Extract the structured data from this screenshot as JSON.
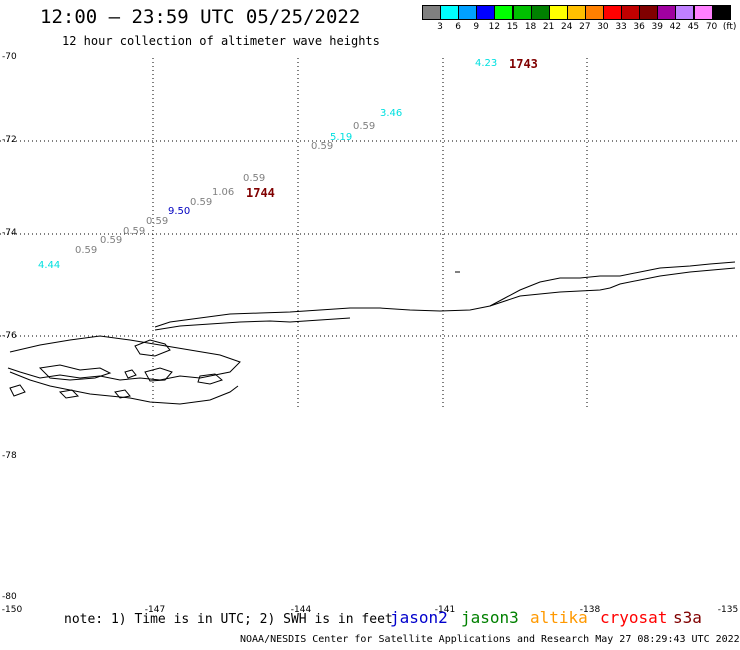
{
  "header": {
    "title": "12:00 – 23:59 UTC 05/25/2022",
    "subtitle": "12 hour collection of altimeter wave heights"
  },
  "legend": {
    "colors": [
      "#808080",
      "#00ffff",
      "#00a0ff",
      "#0000ff",
      "#00ff00",
      "#00c000",
      "#008000",
      "#ffff00",
      "#ffc000",
      "#ff8000",
      "#ff0000",
      "#c00000",
      "#800000",
      "#a000a0",
      "#c080ff",
      "#ff80ff",
      "#000000"
    ],
    "labels": [
      "3",
      "6",
      "9",
      "12",
      "15",
      "18",
      "21",
      "24",
      "27",
      "30",
      "33",
      "36",
      "39",
      "42",
      "45",
      "70",
      "(ft)"
    ]
  },
  "axes": {
    "lat_labels": [
      "-70",
      "-72",
      "-74",
      "-76",
      "-78",
      "-80"
    ],
    "lon_labels": [
      "-150",
      "-147",
      "-144",
      "-141",
      "-138",
      "-135"
    ]
  },
  "observations": [
    {
      "value": "4.23",
      "color": "#00e0e0"
    },
    {
      "value": "3.46",
      "color": "#00e0e0"
    },
    {
      "value": "0.59",
      "color": "#808080"
    },
    {
      "value": "5.19",
      "color": "#00e0e0"
    },
    {
      "value": "0.59",
      "color": "#808080"
    },
    {
      "value": "0.59",
      "color": "#808080"
    },
    {
      "value": "1.06",
      "color": "#808080"
    },
    {
      "value": "0.59",
      "color": "#808080"
    },
    {
      "value": "9.50",
      "color": "#0000c0"
    },
    {
      "value": "0.59",
      "color": "#808080"
    },
    {
      "value": "0.59",
      "color": "#808080"
    },
    {
      "value": "0.59",
      "color": "#808080"
    },
    {
      "value": "0.59",
      "color": "#808080"
    },
    {
      "value": "4.44",
      "color": "#00e0e0"
    }
  ],
  "pass_times": [
    {
      "label": "1743",
      "color": "#800000"
    },
    {
      "label": "1744",
      "color": "#800000"
    }
  ],
  "footer": {
    "note": "note: 1) Time is in UTC; 2) SWH is in feet",
    "satellites": [
      {
        "name": "jason2",
        "color": "#0000cc"
      },
      {
        "name": "jason3",
        "color": "#008000"
      },
      {
        "name": "altika",
        "color": "#ff9900"
      },
      {
        "name": "cryosat",
        "color": "#ff0000"
      },
      {
        "name": "s3a",
        "color": "#800000"
      }
    ],
    "credit": "NOAA/NESDIS Center for Satellite Applications and Research   May 27 08:29:43 UTC 2022"
  }
}
